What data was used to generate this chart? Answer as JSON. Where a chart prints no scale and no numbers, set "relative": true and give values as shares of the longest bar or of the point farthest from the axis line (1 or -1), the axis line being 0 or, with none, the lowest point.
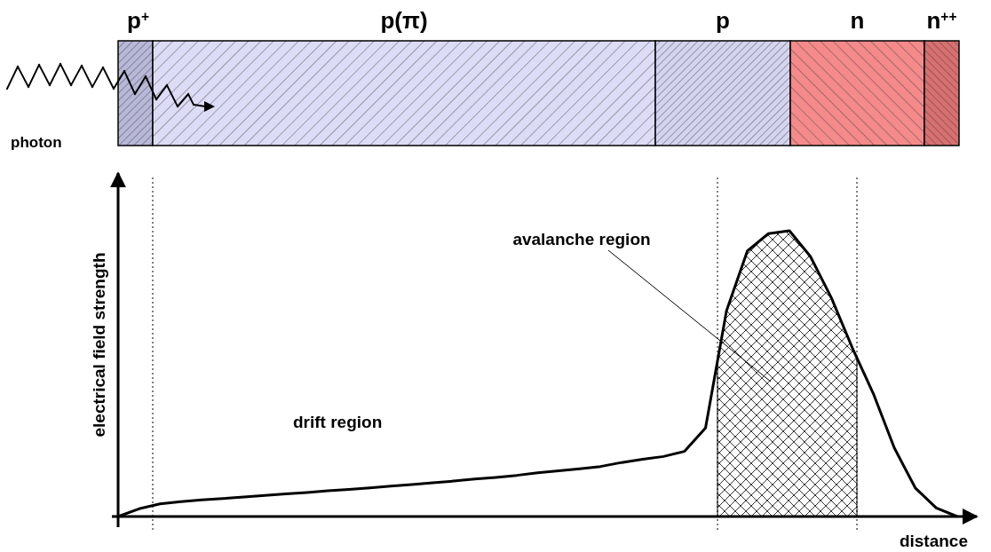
{
  "chart_data": {
    "type": "line",
    "relative": true,
    "xlabel": "distance",
    "ylabel": "electrical field strength",
    "categories": [
      null,
      null,
      null,
      null,
      null,
      null,
      null,
      null,
      null,
      null,
      null,
      null,
      null,
      null,
      null,
      null,
      null,
      null,
      null,
      null,
      null,
      null,
      null,
      null,
      null,
      null,
      null,
      null,
      null,
      null,
      null,
      null,
      null,
      null,
      null,
      null,
      null,
      null,
      null,
      null,
      null
    ],
    "series": [
      {
        "color": "#000000",
        "values": [
          0,
          0.027,
          0.044,
          0.052,
          0.058,
          0.063,
          0.068,
          0.074,
          0.079,
          0.084,
          0.09,
          0.095,
          0.1,
          0.106,
          0.112,
          0.118,
          0.124,
          0.131,
          0.137,
          0.144,
          0.153,
          0.16,
          0.167,
          0.175,
          0.189,
          0.2,
          0.21,
          0.228,
          0.31,
          0.72,
          0.93,
          0.99,
          1,
          0.91,
          0.765,
          0.59,
          0.43,
          0.24,
          0.1,
          0.03,
          0
        ]
      }
    ],
    "annotations": [
      "p$^{+}$",
      "p(π)",
      "p",
      "n",
      "n$^{++}$",
      "photon",
      "drift region",
      "avalanche region"
    ],
    "line_style": "solid",
    "marker": "none"
  }
}
